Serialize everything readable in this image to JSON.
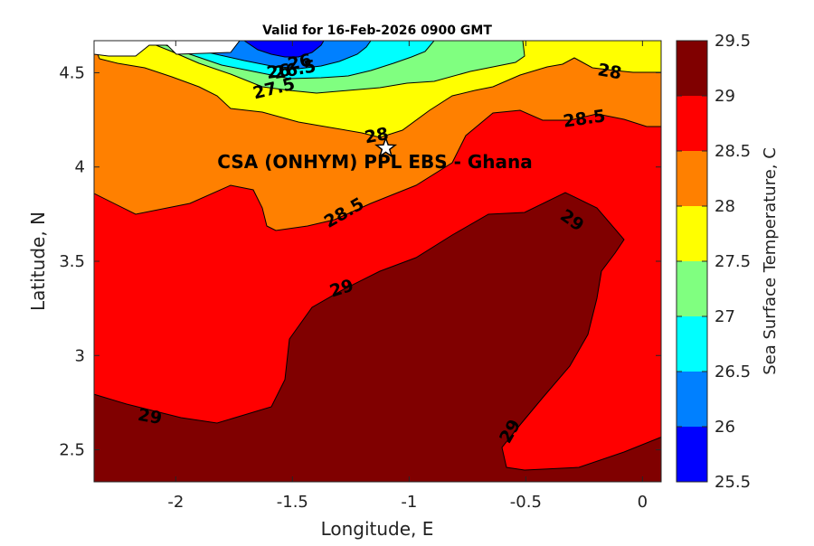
{
  "chart_data": {
    "type": "contour",
    "title": "Valid for 16-Feb-2026 0900 GMT",
    "xlabel": "Longitude, E",
    "ylabel": "Latitude, N",
    "xlim": [
      -2.35,
      0.08
    ],
    "ylim": [
      2.33,
      4.67
    ],
    "x_ticks": [
      -2,
      -1.5,
      -1,
      -0.5,
      0
    ],
    "x_tick_labels": [
      "-2",
      "-1.5",
      "-1",
      "-0.5",
      "0"
    ],
    "y_ticks": [
      2.5,
      3,
      3.5,
      4,
      4.5
    ],
    "y_tick_labels": [
      "2.5",
      "3",
      "3.5",
      "4",
      "4.5"
    ],
    "colorbar": {
      "label": "Sea Surface Temperature, C",
      "levels": [
        25.5,
        26,
        26.5,
        27,
        27.5,
        28,
        28.5,
        29,
        29.5
      ],
      "level_labels": [
        "25.5",
        "26",
        "26.5",
        "27",
        "27.5",
        "28",
        "28.5",
        "29",
        "29.5"
      ],
      "colors": [
        "#0000ff",
        "#0080ff",
        "#00ffff",
        "#80ff80",
        "#ffff00",
        "#ff8000",
        "#ff0000",
        "#800000"
      ]
    },
    "contour_labels": [
      {
        "text": "26",
        "lon": -1.47,
        "lat": 4.56
      },
      {
        "text": "26.5",
        "lon": -1.49,
        "lat": 4.52
      },
      {
        "text": "26",
        "lon": -1.56,
        "lat": 4.51
      },
      {
        "text": "27.5",
        "lon": -1.58,
        "lat": 4.42
      },
      {
        "text": "28",
        "lon": -0.14,
        "lat": 4.51
      },
      {
        "text": "28",
        "lon": -1.14,
        "lat": 4.17
      },
      {
        "text": "28.5",
        "lon": -0.25,
        "lat": 4.26
      },
      {
        "text": "28.5",
        "lon": -1.28,
        "lat": 3.76
      },
      {
        "text": "29",
        "lon": -1.29,
        "lat": 3.36
      },
      {
        "text": "29",
        "lon": -0.3,
        "lat": 3.72
      },
      {
        "text": "29",
        "lon": -2.11,
        "lat": 2.68
      },
      {
        "text": "29",
        "lon": -0.57,
        "lat": 2.6
      }
    ],
    "site": {
      "label": "CSA (ONHYM) PPL EBS  - Ghana",
      "lon": -1.1,
      "lat": 4.1,
      "marker": "star"
    }
  }
}
